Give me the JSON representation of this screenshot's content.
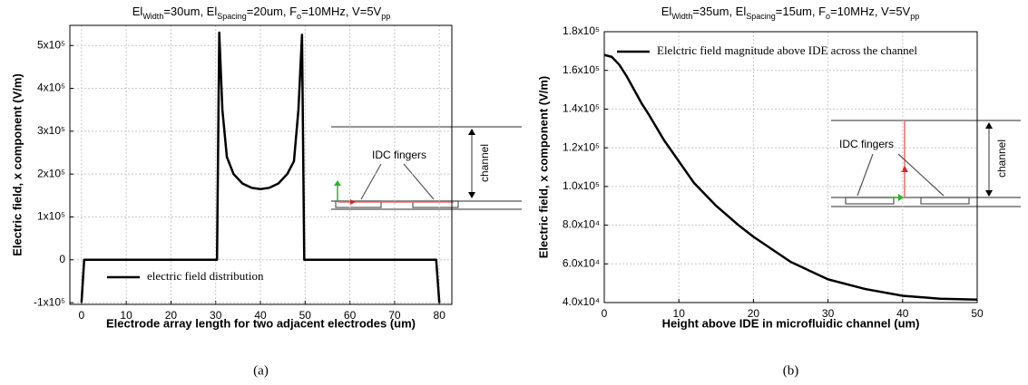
{
  "chart_data": [
    {
      "type": "line",
      "title": [
        {
          "text": "El"
        },
        {
          "text": "Width",
          "sub": true
        },
        {
          "text": "=30um, El"
        },
        {
          "text": "Spacing",
          "sub": true
        },
        {
          "text": "=20um, F"
        },
        {
          "text": "o",
          "sub": true
        },
        {
          "text": "=10MHz, V=5V"
        },
        {
          "text": "pp",
          "sub": true
        }
      ],
      "x_label": "Electrode array length for two adjacent electrodes (um)",
      "y_label": "Electric field, x component (V/m)",
      "caption": "(a)",
      "x": [
        0,
        0.6,
        30.3,
        30.8,
        31.5,
        32.5,
        34,
        36,
        38,
        40,
        42,
        44,
        46,
        47.5,
        48.5,
        49.3,
        49.8,
        79.3,
        80
      ],
      "series": [
        {
          "name": "electric field distribution",
          "color": "#000000",
          "values": [
            -100000,
            0,
            0,
            530000,
            350000,
            240000,
            200000,
            178000,
            168000,
            165000,
            168000,
            178000,
            200000,
            230000,
            350000,
            525000,
            0,
            0,
            -100000
          ]
        }
      ],
      "xlim": [
        -2.6,
        82.8
      ],
      "xticks": [
        0,
        10,
        20,
        30,
        40,
        50,
        60,
        70,
        80
      ],
      "ylim": [
        -104000,
        547000
      ],
      "yticks": [
        {
          "value": -100000,
          "label": "-1x10⁵"
        },
        0,
        {
          "value": 100000,
          "label": "1x10⁵"
        },
        {
          "value": 200000,
          "label": "2x10⁵"
        },
        {
          "value": 300000,
          "label": "3x10⁵"
        },
        {
          "value": 400000,
          "label": "4x10⁵"
        },
        {
          "value": 500000,
          "label": "5x10⁵"
        }
      ],
      "grid": true,
      "legend": "lower left",
      "annotations": [
        "IDC fingers",
        "channel"
      ]
    },
    {
      "type": "line",
      "title": [
        {
          "text": "El"
        },
        {
          "text": "Width",
          "sub": true
        },
        {
          "text": "=35um, El"
        },
        {
          "text": "Spacing",
          "sub": true
        },
        {
          "text": "=15um, F"
        },
        {
          "text": "o",
          "sub": true
        },
        {
          "text": "=10MHz, V=5V"
        },
        {
          "text": "pp",
          "sub": true
        }
      ],
      "x_label": "Height above IDE in microfluidic channel (um)",
      "y_label": "Electric field, x component (V/m)",
      "caption": "(b)",
      "x": [
        0,
        1,
        2,
        3,
        4,
        5,
        6,
        8,
        10,
        12,
        15,
        18,
        20,
        25,
        30,
        35,
        40,
        45,
        50
      ],
      "series": [
        {
          "name": "Elelctric field magnitude above IDE across the channel",
          "color": "#000000",
          "values": [
            168000,
            167000,
            163000,
            157000,
            150000,
            143000,
            137000,
            124000,
            113000,
            102000,
            90000,
            80000,
            74000,
            61000,
            52000,
            47000,
            43500,
            42000,
            41500
          ]
        }
      ],
      "xlim": [
        0,
        50
      ],
      "xticks": [
        0,
        10,
        20,
        30,
        40,
        50
      ],
      "ylim": [
        40000,
        180000
      ],
      "yticks": [
        {
          "value": 40000,
          "label": "4.0x10⁴"
        },
        {
          "value": 60000,
          "label": "6.0x10⁴"
        },
        {
          "value": 80000,
          "label": "8.0x10⁴"
        },
        {
          "value": 100000,
          "label": "1.0x10⁵"
        },
        {
          "value": 120000,
          "label": "1.2x10⁵"
        },
        {
          "value": 140000,
          "label": "1.4x10⁵"
        },
        {
          "value": 160000,
          "label": "1.6x10⁵"
        },
        {
          "value": 180000,
          "label": "1.8x10⁵"
        }
      ],
      "grid": true,
      "legend": "upper left",
      "annotations": [
        "IDC fingers",
        "channel"
      ]
    }
  ]
}
